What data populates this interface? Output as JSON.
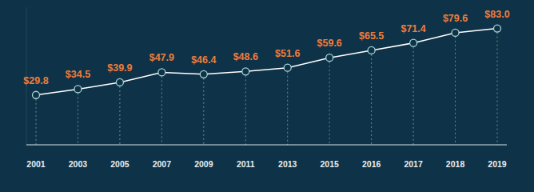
{
  "chart_data": {
    "type": "line",
    "categories": [
      "2001",
      "2003",
      "2005",
      "2007",
      "2009",
      "2011",
      "2013",
      "2015",
      "2016",
      "2017",
      "2018",
      "2019"
    ],
    "values": [
      29.8,
      34.5,
      39.9,
      47.9,
      46.4,
      48.6,
      51.6,
      59.6,
      65.5,
      71.4,
      79.6,
      83.0
    ],
    "value_labels": [
      "$29.8",
      "$34.5",
      "$39.9",
      "$47.9",
      "$46.4",
      "$48.6",
      "$51.6",
      "$59.6",
      "$65.5",
      "$71.4",
      "$79.6",
      "$83.0"
    ],
    "ylim": [
      -10,
      100
    ],
    "data_labels": true,
    "tick_labels": "x",
    "grid": false,
    "color": "#ffffff",
    "marker": "circle"
  }
}
